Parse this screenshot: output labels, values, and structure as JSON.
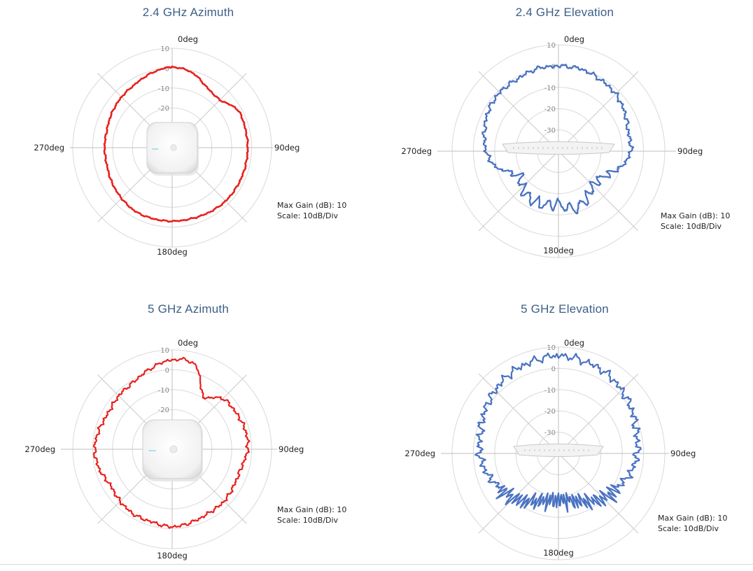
{
  "charts": {
    "max_gain_label": "Max Gain (dB): 10",
    "scale_label": "Scale: 10dB/Div",
    "deg_labels": {
      "top": "0deg",
      "right": "90deg",
      "bottom": "180deg",
      "left": "270deg"
    }
  },
  "chart_data": [
    {
      "type": "polar-line",
      "title": "2.4 GHz Azimuth",
      "band": "2.4 GHz",
      "plane": "Azimuth",
      "r_axis": {
        "min": -40,
        "max": 10,
        "unit": "dB",
        "tick_labels": [
          10,
          0,
          -10,
          -20
        ]
      },
      "angle_labels": [
        "0deg",
        "90deg",
        "180deg",
        "270deg"
      ],
      "max_gain_db": 10,
      "scale_db_per_div": 10,
      "line_color": "#e8211e",
      "device": "ceiling-ap-top",
      "angles_deg": [
        0,
        15,
        30,
        45,
        60,
        75,
        90,
        105,
        120,
        135,
        150,
        165,
        180,
        195,
        210,
        225,
        240,
        255,
        270,
        285,
        300,
        315,
        330,
        345
      ],
      "gain_db": [
        0.5,
        -1,
        -5,
        -6,
        -2,
        -2,
        -2,
        -2,
        -2,
        -2,
        -2.5,
        -3,
        -3,
        -3,
        -3,
        -4,
        -5,
        -6,
        -6,
        -6,
        -5,
        -4,
        -3,
        -1
      ]
    },
    {
      "type": "polar-line",
      "title": "2.4 GHz Elevation",
      "band": "2.4 GHz",
      "plane": "Elevation",
      "r_axis": {
        "min": -40,
        "max": 10,
        "unit": "dB",
        "tick_labels": [
          10,
          0,
          -10,
          -20,
          -30
        ]
      },
      "angle_labels": [
        "0deg",
        "90deg",
        "180deg",
        "270deg"
      ],
      "max_gain_db": 10,
      "scale_db_per_div": 10,
      "line_color": "#4a72c1",
      "device": "ceiling-ap-side",
      "angles_deg": [
        0,
        15,
        30,
        45,
        60,
        75,
        90,
        105,
        120,
        135,
        150,
        165,
        180,
        195,
        210,
        225,
        240,
        255,
        270,
        285,
        300,
        315,
        330,
        345
      ],
      "gain_db": [
        0,
        0,
        -1,
        -2,
        -4,
        -6,
        -6,
        -10,
        -16,
        -17,
        -14,
        -12,
        -15,
        -14,
        -14,
        -16,
        -18,
        -10,
        -6,
        -4,
        -2,
        -1,
        -1,
        0
      ]
    },
    {
      "type": "polar-line",
      "title": "5 GHz Azimuth",
      "band": "5 GHz",
      "plane": "Azimuth",
      "r_axis": {
        "min": -40,
        "max": 10,
        "unit": "dB",
        "tick_labels": [
          10,
          0,
          -10,
          -20
        ]
      },
      "angle_labels": [
        "0deg",
        "90deg",
        "180deg",
        "270deg"
      ],
      "max_gain_db": 10,
      "scale_db_per_div": 10,
      "line_color": "#e8211e",
      "device": "ceiling-ap-top",
      "angles_deg": [
        0,
        15,
        30,
        45,
        60,
        75,
        90,
        105,
        120,
        135,
        150,
        165,
        180,
        195,
        210,
        225,
        240,
        255,
        270,
        285,
        300,
        315,
        330,
        345
      ],
      "gain_db": [
        5,
        4,
        -9,
        -4,
        -3,
        -2,
        -2,
        -4,
        -4,
        -3,
        -3,
        -2,
        -1,
        -2,
        -2,
        -3,
        -4,
        -2,
        -1,
        -2,
        -3,
        -2,
        -1,
        2
      ]
    },
    {
      "type": "polar-line",
      "title": "5 GHz Elevation",
      "band": "5 GHz",
      "plane": "Elevation",
      "r_axis": {
        "min": -40,
        "max": 10,
        "unit": "dB",
        "tick_labels": [
          10,
          0,
          -10,
          -20,
          -30
        ]
      },
      "angle_labels": [
        "0deg",
        "90deg",
        "180deg",
        "270deg"
      ],
      "max_gain_db": 10,
      "scale_db_per_div": 10,
      "line_color": "#4a72c1",
      "device": "ceiling-ap-side",
      "angles_deg": [
        0,
        15,
        30,
        45,
        60,
        75,
        90,
        105,
        120,
        135,
        150,
        165,
        180,
        195,
        210,
        225,
        240,
        255,
        270,
        285,
        300,
        315,
        330,
        345
      ],
      "gain_db": [
        6,
        5,
        4,
        2,
        0,
        -2,
        -3,
        -5,
        -8,
        -10,
        -14,
        -17,
        -18,
        -17,
        -14,
        -10,
        -8,
        -5,
        -3,
        -2,
        0,
        2,
        4,
        5
      ]
    }
  ]
}
